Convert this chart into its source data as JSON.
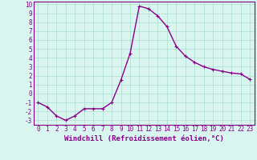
{
  "x": [
    0,
    1,
    2,
    3,
    4,
    5,
    6,
    7,
    8,
    9,
    10,
    11,
    12,
    13,
    14,
    15,
    16,
    17,
    18,
    19,
    20,
    21,
    22,
    23
  ],
  "y": [
    -1,
    -1.5,
    -2.5,
    -3,
    -2.5,
    -1.7,
    -1.7,
    -1.7,
    -1,
    1.5,
    4.5,
    9.8,
    9.5,
    8.7,
    7.5,
    5.3,
    4.2,
    3.5,
    3.0,
    2.7,
    2.5,
    2.3,
    2.2,
    1.6
  ],
  "line_color": "#880088",
  "marker": "+",
  "marker_size": 3,
  "bg_color": "#d8f5ef",
  "grid_color": "#aaddcc",
  "xlabel": "Windchill (Refroidissement éolien,°C)",
  "xlim_min": -0.5,
  "xlim_max": 23.5,
  "ylim_min": -3.5,
  "ylim_max": 10.3,
  "yticks": [
    -3,
    -2,
    -1,
    0,
    1,
    2,
    3,
    4,
    5,
    6,
    7,
    8,
    9,
    10
  ],
  "xticks": [
    0,
    1,
    2,
    3,
    4,
    5,
    6,
    7,
    8,
    9,
    10,
    11,
    12,
    13,
    14,
    15,
    16,
    17,
    18,
    19,
    20,
    21,
    22,
    23
  ],
  "xlabel_fontsize": 6.5,
  "tick_fontsize": 5.5,
  "xlabel_color": "#880088",
  "tick_color": "#880088",
  "axis_color": "#880088",
  "line_width": 1.0
}
